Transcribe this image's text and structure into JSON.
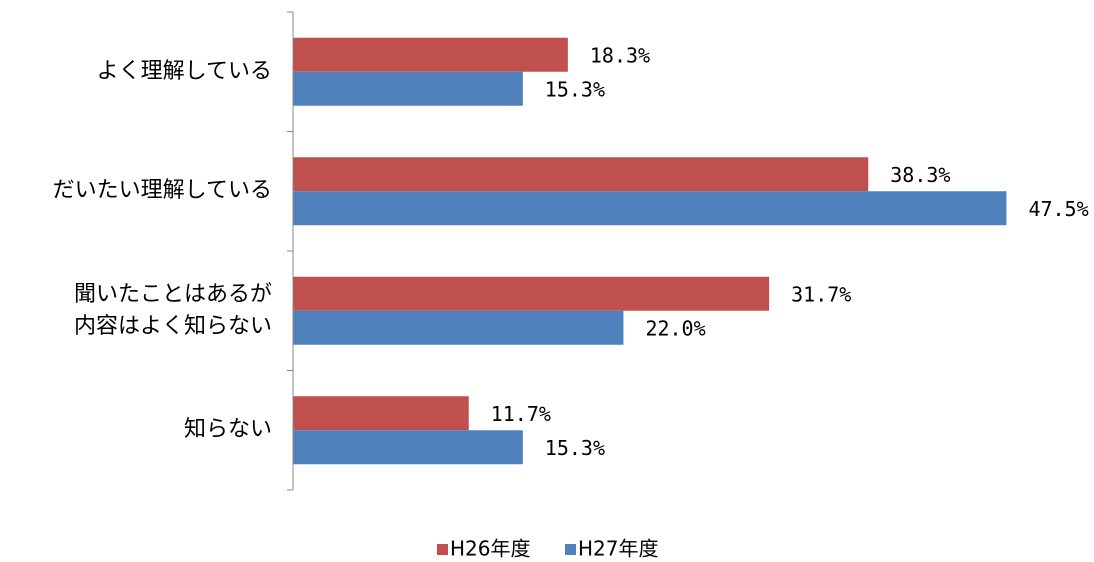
{
  "chart_data": {
    "type": "bar",
    "orientation": "horizontal",
    "categories": [
      "よく理解している",
      "だいたい理解している",
      "聞いたことはあるが\n内容はよく知らない",
      "知らない"
    ],
    "series": [
      {
        "name": "H26年度",
        "color": "#c0504d",
        "values": [
          18.3,
          38.3,
          31.7,
          11.7
        ],
        "value_labels": [
          "18.3%",
          "38.3%",
          "31.7%",
          "11.7%"
        ]
      },
      {
        "name": "H27年度",
        "color": "#4f81bd",
        "values": [
          15.3,
          47.5,
          22.0,
          15.3
        ],
        "value_labels": [
          "15.3%",
          "47.5%",
          "22.0%",
          "15.3%"
        ]
      }
    ],
    "xlim": [
      0,
      50
    ],
    "legend": "bottom"
  }
}
